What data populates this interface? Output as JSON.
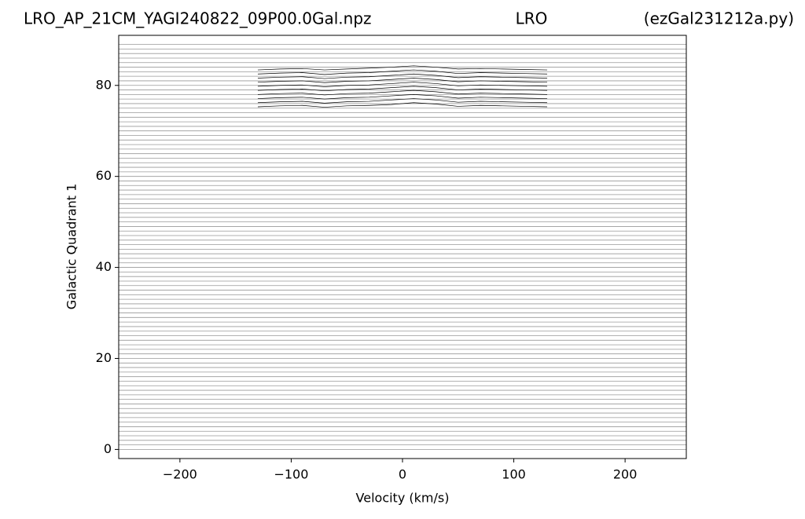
{
  "chart_data": {
    "type": "line",
    "title": "LRO_AP_21CM_YAGI240822_09P00.0Gal.npz",
    "subtitle": "LRO",
    "annotation": "(ezGal231212a.py)",
    "x_label": "Velocity (km/s)",
    "y_label": "Galactic Quadrant 1",
    "xlim": [
      -255,
      255
    ],
    "ylim": [
      -2,
      91
    ],
    "xticks": [
      {
        "value": -200,
        "label": "−200"
      },
      {
        "value": -100,
        "label": "−100"
      },
      0,
      100,
      200
    ],
    "yticks": [
      0,
      20,
      40,
      60,
      80
    ],
    "baseline_color": "#999999",
    "baselines": [
      0,
      1,
      2,
      3,
      4,
      5,
      6,
      7,
      8,
      9,
      10,
      11,
      12,
      13,
      14,
      15,
      16,
      17,
      18,
      19,
      20,
      21,
      22,
      23,
      24,
      25,
      26,
      27,
      28,
      29,
      30,
      31,
      32,
      33,
      34,
      35,
      36,
      37,
      38,
      39,
      40,
      41,
      42,
      43,
      44,
      45,
      46,
      47,
      48,
      49,
      50,
      51,
      52,
      53,
      54,
      55,
      56,
      57,
      58,
      59,
      60,
      61,
      62,
      63,
      64,
      65,
      66,
      67,
      68,
      69,
      70,
      71,
      72,
      73,
      74,
      75,
      76,
      77,
      78,
      79,
      80,
      81,
      82,
      83,
      84,
      85,
      86,
      87,
      88,
      89
    ],
    "x": [
      -130,
      -110,
      -90,
      -70,
      -50,
      -30,
      -10,
      10,
      30,
      50,
      70,
      90,
      110,
      130
    ],
    "series": [
      {
        "color": "#000000",
        "values": [
          75.3,
          75.5,
          75.6,
          75.2,
          75.5,
          75.6,
          75.8,
          76.2,
          75.9,
          75.4,
          75.6,
          75.5,
          75.4,
          75.3
        ]
      },
      {
        "color": "#000000",
        "values": [
          76.2,
          76.4,
          76.5,
          76.1,
          76.4,
          76.5,
          76.8,
          77.1,
          76.8,
          76.3,
          76.5,
          76.4,
          76.3,
          76.2
        ]
      },
      {
        "color": "#000000",
        "values": [
          77.1,
          77.3,
          77.4,
          77.0,
          77.3,
          77.4,
          77.7,
          78.0,
          77.7,
          77.2,
          77.4,
          77.3,
          77.2,
          77.1
        ]
      },
      {
        "color": "#000000",
        "values": [
          78.0,
          78.2,
          78.3,
          77.9,
          78.2,
          78.3,
          78.6,
          78.9,
          78.6,
          78.1,
          78.3,
          78.2,
          78.1,
          78.0
        ]
      },
      {
        "color": "#000000",
        "values": [
          78.9,
          79.1,
          79.2,
          78.8,
          79.1,
          79.2,
          79.5,
          79.8,
          79.5,
          79.0,
          79.2,
          79.1,
          79.0,
          78.9
        ]
      },
      {
        "color": "#000000",
        "values": [
          79.8,
          80.0,
          80.1,
          79.7,
          80.0,
          80.1,
          80.4,
          80.7,
          80.4,
          79.9,
          80.1,
          80.0,
          79.9,
          79.8
        ]
      },
      {
        "color": "#000000",
        "values": [
          80.7,
          80.9,
          81.0,
          80.6,
          80.9,
          81.0,
          81.3,
          81.6,
          81.3,
          80.8,
          81.0,
          80.9,
          80.8,
          80.7
        ]
      },
      {
        "color": "#000000",
        "values": [
          81.6,
          81.8,
          81.9,
          81.5,
          81.8,
          81.9,
          82.2,
          82.5,
          82.2,
          81.7,
          81.9,
          81.8,
          81.7,
          81.6
        ]
      },
      {
        "color": "#000000",
        "values": [
          82.5,
          82.7,
          82.8,
          82.4,
          82.7,
          82.8,
          83.1,
          83.4,
          83.1,
          82.6,
          82.8,
          82.7,
          82.6,
          82.5
        ]
      },
      {
        "color": "#000000",
        "values": [
          83.4,
          83.6,
          83.7,
          83.4,
          83.6,
          83.8,
          84.0,
          84.3,
          84.0,
          83.6,
          83.7,
          83.6,
          83.5,
          83.4
        ]
      }
    ]
  }
}
